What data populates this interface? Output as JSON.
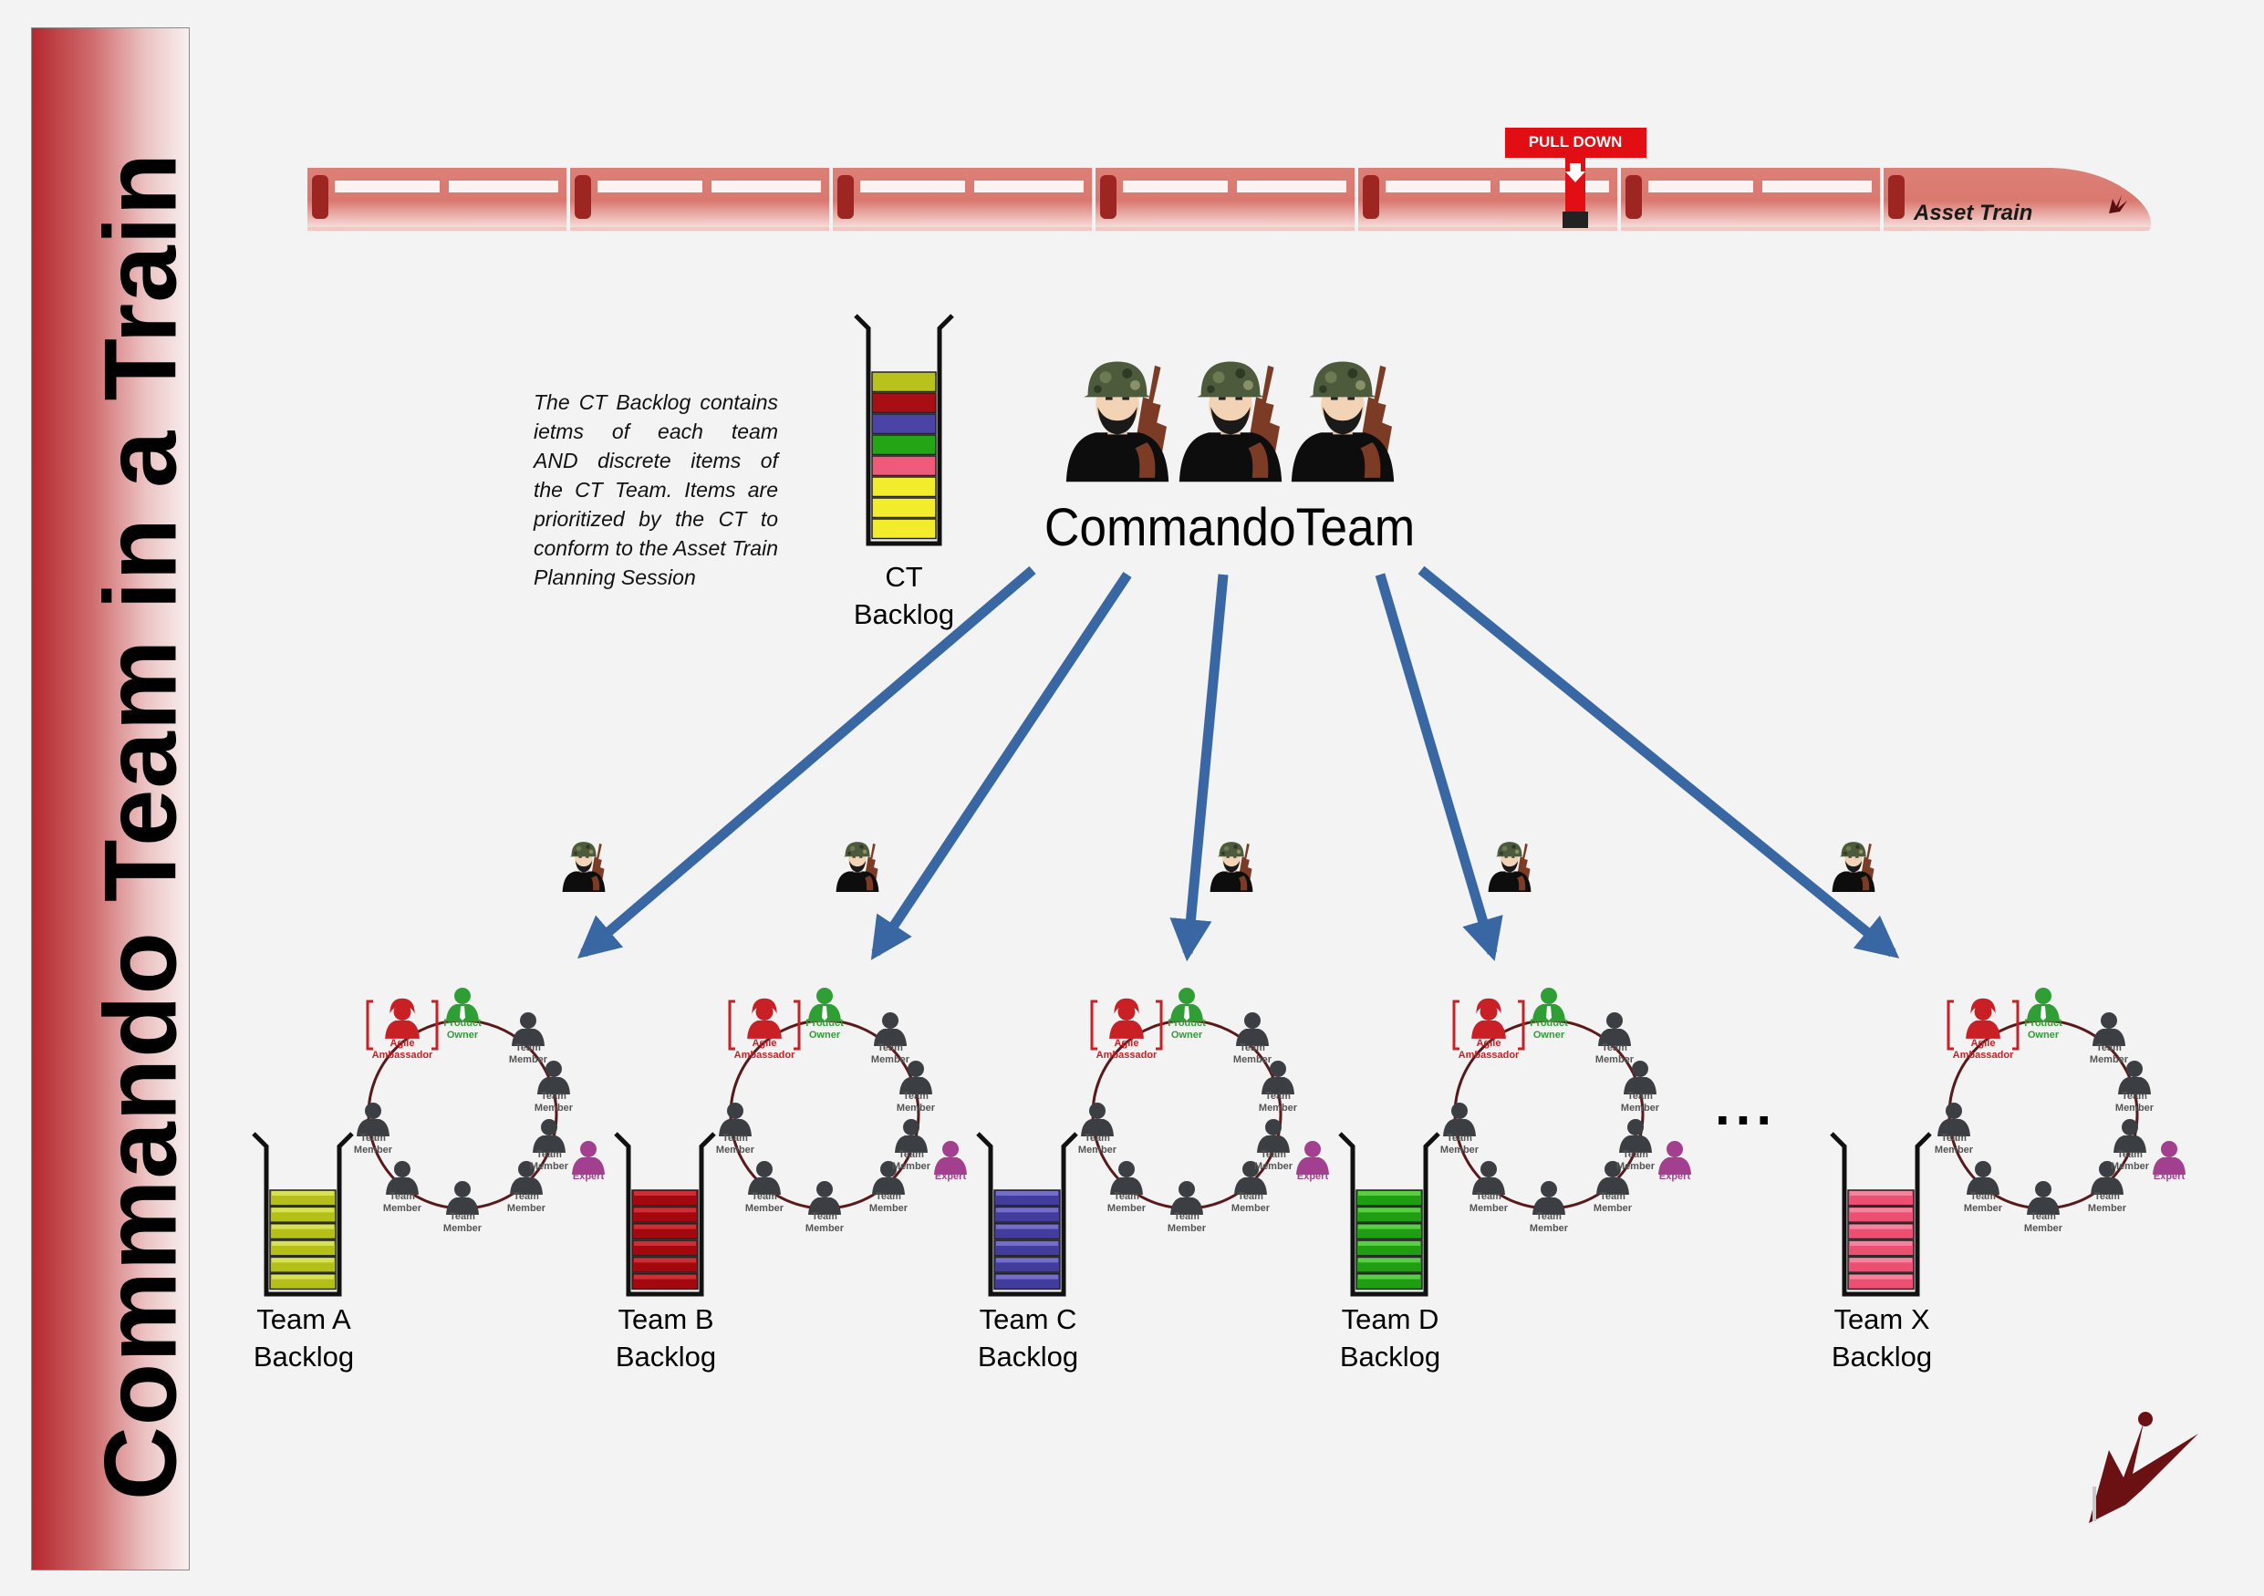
{
  "title": "Commando Team in a Train",
  "train": {
    "label": "Asset Train",
    "pull_down_label": "PULL DOWN"
  },
  "ct_backlog": {
    "label_line1": "CT",
    "label_line2": "Backlog",
    "stripe_colors": [
      "#b8c21c",
      "#a80f14",
      "#4a44a6",
      "#23a516",
      "#ee5a78",
      "#f2ec2c",
      "#f2ec2c",
      "#f2ec2c"
    ]
  },
  "note_lines": [
    "The CT Backlog contains",
    "ietms of each team",
    "AND discrete items of",
    "the CT Team. Items are",
    "prioritized by the CT to",
    "conform to the Asset Train",
    "Planning Session"
  ],
  "commando_team": {
    "label": "CommandoTeam"
  },
  "ellipsis": "...",
  "roles": {
    "team_member_line1": "Team",
    "team_member_line2": "Member",
    "product_owner_line1": "Product",
    "product_owner_line2": "Owner",
    "agile_line1": "Agile",
    "agile_line2": "Ambassador",
    "expert": "Expert"
  },
  "teams": [
    {
      "label_line1": "Team A",
      "label_line2": "Backlog",
      "color": "#b4bf17",
      "light": "#dbe45a"
    },
    {
      "label_line1": "Team B",
      "label_line2": "Backlog",
      "color": "#a3080e",
      "light": "#d2343a"
    },
    {
      "label_line1": "Team C",
      "label_line2": "Backlog",
      "color": "#423c9c",
      "light": "#7a73cf"
    },
    {
      "label_line1": "Team D",
      "label_line2": "Backlog",
      "color": "#1e9e10",
      "light": "#5fd24c"
    },
    {
      "label_line1": "Team X",
      "label_line2": "Backlog",
      "color": "#ec4f72",
      "light": "#f58aa2"
    }
  ],
  "colors": {
    "arrow": "#3967a4",
    "train": "#d8776e",
    "train_window": "#fbf2f1",
    "pull_down": "#e10e14",
    "sidebar": "#b4272d",
    "person_dark": "#3b3f44",
    "product_owner": "#2e9e35",
    "agile_ambassador": "#c92026",
    "expert": "#a33f8f",
    "soldier_helmet": "#4e5a3c",
    "rifle": "#7b3b25",
    "circle": "#5a1a1a"
  }
}
